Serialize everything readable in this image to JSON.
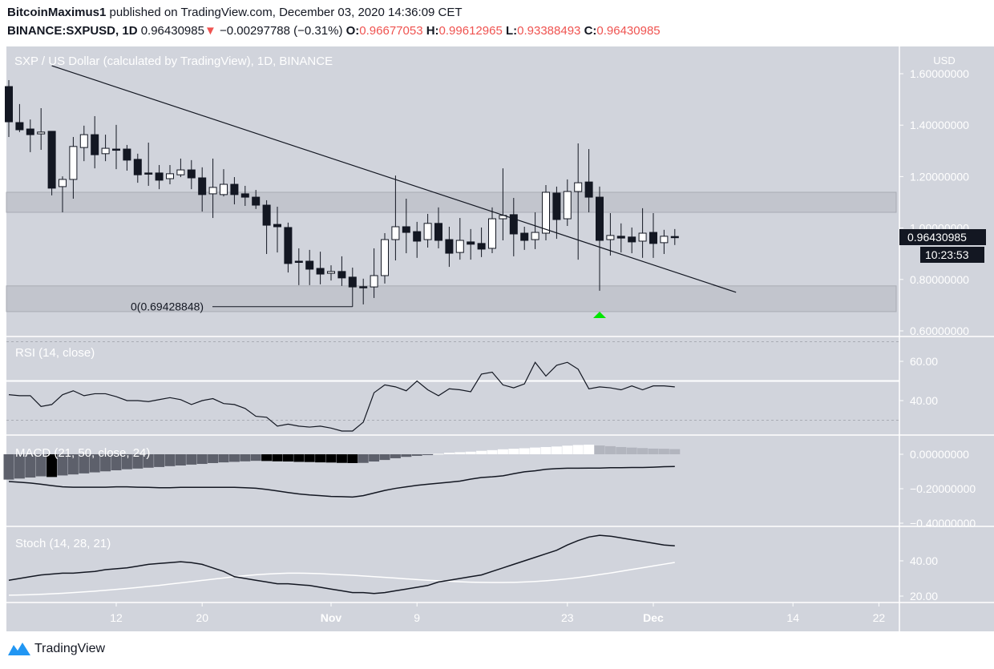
{
  "header": {
    "author": "BitcoinMaximus1",
    "published": "published on TradingView.com, December 03, 2020 14:36:09 CET",
    "symbol": "BINANCE:SXPUSD, 1D",
    "last": "0.96430985",
    "change": "−0.00297788 (−0.31%)",
    "o_label": "O:",
    "o": "0.96677053",
    "h_label": "H:",
    "h": "0.99612965",
    "l_label": "L:",
    "l": "0.93388493",
    "c_label": "C:",
    "c": "0.96430985"
  },
  "colors": {
    "bg": "#d1d4dc",
    "zone": "#c2c5cd",
    "down": "#131722",
    "up": "#ffffff",
    "accent_red": "#ef5350",
    "signal_green": "#00e600",
    "brand_blue": "#2196f3"
  },
  "footer": {
    "brand": "TradingView"
  },
  "chart_data": {
    "type": "candlestick",
    "title": "SXP / US Dollar (calculated by TradingView), 1D, BINANCE",
    "currency": "USD",
    "ylim": [
      0.6,
      1.6
    ],
    "y_ticks": [
      "1.60000000",
      "1.40000000",
      "1.20000000",
      "1.00000000",
      "0.80000000",
      "0.60000000"
    ],
    "y_tick_values": [
      1.6,
      1.4,
      1.2,
      1.0,
      0.8,
      0.6
    ],
    "x_ticks": [
      {
        "label": "12",
        "index": 10
      },
      {
        "label": "20",
        "index": 18
      },
      {
        "label": "Nov",
        "index": 30
      },
      {
        "label": "9",
        "index": 38
      },
      {
        "label": "23",
        "index": 52
      },
      {
        "label": "Dec",
        "index": 60
      },
      {
        "label": "14",
        "index": 73
      },
      {
        "label": "22",
        "index": 81
      }
    ],
    "last_price_label": "0.96430985",
    "countdown": "10:23:53",
    "ohlc": [
      [
        1.55,
        1.575,
        1.354,
        1.413
      ],
      [
        1.41,
        1.482,
        1.373,
        1.382
      ],
      [
        1.385,
        1.422,
        1.295,
        1.363
      ],
      [
        1.366,
        1.466,
        1.304,
        1.373
      ],
      [
        1.376,
        1.376,
        1.127,
        1.155
      ],
      [
        1.161,
        1.201,
        1.061,
        1.189
      ],
      [
        1.189,
        1.354,
        1.114,
        1.317
      ],
      [
        1.313,
        1.398,
        1.26,
        1.363
      ],
      [
        1.363,
        1.435,
        1.232,
        1.285
      ],
      [
        1.289,
        1.363,
        1.26,
        1.31
      ],
      [
        1.307,
        1.401,
        1.229,
        1.304
      ],
      [
        1.307,
        1.323,
        1.223,
        1.264
      ],
      [
        1.267,
        1.289,
        1.176,
        1.207
      ],
      [
        1.214,
        1.332,
        1.164,
        1.211
      ],
      [
        1.214,
        1.245,
        1.151,
        1.186
      ],
      [
        1.192,
        1.245,
        1.17,
        1.211
      ],
      [
        1.207,
        1.27,
        1.198,
        1.226
      ],
      [
        1.226,
        1.264,
        1.151,
        1.195
      ],
      [
        1.195,
        1.236,
        1.064,
        1.13
      ],
      [
        1.133,
        1.27,
        1.039,
        1.158
      ],
      [
        1.13,
        1.229,
        1.123,
        1.17
      ],
      [
        1.17,
        1.198,
        1.092,
        1.13
      ],
      [
        1.133,
        1.164,
        1.086,
        1.12
      ],
      [
        1.12,
        1.148,
        1.074,
        1.089
      ],
      [
        1.089,
        1.108,
        0.899,
        1.011
      ],
      [
        1.014,
        1.083,
        0.905,
        1.005
      ],
      [
        1.002,
        1.021,
        0.827,
        0.862
      ],
      [
        0.871,
        0.921,
        0.778,
        0.868
      ],
      [
        0.871,
        0.915,
        0.778,
        0.84
      ],
      [
        0.843,
        0.908,
        0.781,
        0.821
      ],
      [
        0.824,
        0.855,
        0.796,
        0.831
      ],
      [
        0.831,
        0.89,
        0.775,
        0.806
      ],
      [
        0.809,
        0.846,
        0.694,
        0.771
      ],
      [
        0.772,
        0.803,
        0.703,
        0.771
      ],
      [
        0.771,
        0.921,
        0.728,
        0.815
      ],
      [
        0.815,
        0.98,
        0.784,
        0.955
      ],
      [
        0.955,
        1.204,
        0.874,
        1.005
      ],
      [
        1.005,
        1.114,
        0.902,
        0.983
      ],
      [
        0.986,
        1.024,
        0.884,
        0.949
      ],
      [
        0.955,
        1.055,
        0.924,
        1.018
      ],
      [
        1.018,
        1.08,
        0.921,
        0.952
      ],
      [
        0.955,
        1.005,
        0.849,
        0.902
      ],
      [
        0.905,
        1.039,
        0.877,
        0.952
      ],
      [
        0.946,
        0.996,
        0.877,
        0.937
      ],
      [
        0.94,
        1.002,
        0.887,
        0.918
      ],
      [
        0.921,
        1.08,
        0.902,
        1.036
      ],
      [
        1.036,
        1.232,
        0.952,
        1.049
      ],
      [
        1.052,
        1.117,
        0.89,
        0.977
      ],
      [
        0.98,
        1.005,
        0.915,
        0.952
      ],
      [
        0.955,
        1.061,
        0.918,
        0.983
      ],
      [
        0.98,
        1.167,
        0.952,
        1.139
      ],
      [
        1.136,
        1.161,
        0.958,
        1.033
      ],
      [
        1.036,
        1.189,
        1.008,
        1.142
      ],
      [
        1.142,
        1.329,
        0.877,
        1.176
      ],
      [
        1.179,
        1.307,
        1.061,
        1.12
      ],
      [
        1.12,
        1.161,
        0.756,
        0.952
      ],
      [
        0.955,
        1.058,
        0.893,
        0.971
      ],
      [
        0.968,
        1.018,
        0.905,
        0.961
      ],
      [
        0.965,
        1.002,
        0.902,
        0.946
      ],
      [
        0.949,
        1.077,
        0.884,
        0.98
      ],
      [
        0.983,
        1.058,
        0.884,
        0.94
      ],
      [
        0.943,
        0.993,
        0.899,
        0.968
      ],
      [
        0.967,
        0.996,
        0.934,
        0.964
      ]
    ],
    "trendline": {
      "from": [
        4,
        1.631
      ],
      "to": [
        67.7,
        0.75
      ]
    },
    "zones": [
      {
        "top": 1.139,
        "bottom": 1.061
      },
      {
        "top": 0.775,
        "bottom": 0.675
      }
    ],
    "annotation": {
      "label": "0(0.69428848)",
      "price": 0.69428848,
      "index": 32
    },
    "signal_marker": {
      "index": 55,
      "type": "up-triangle"
    },
    "rsi": {
      "label": "RSI (14, close)",
      "ticks": [
        "60.00",
        "40.00"
      ],
      "tick_values": [
        60,
        40
      ],
      "levels": {
        "upper": 70,
        "middle": 50,
        "lower": 30
      },
      "values": [
        43,
        42.5,
        42.5,
        37,
        38,
        43,
        45,
        42.5,
        43.5,
        43.5,
        42,
        40,
        40,
        39.5,
        40.5,
        41.5,
        40.5,
        38,
        40,
        41,
        38.5,
        38,
        36,
        32,
        31.5,
        27,
        28,
        27,
        26.5,
        27,
        26,
        24.5,
        24.5,
        29,
        44,
        48,
        47,
        45,
        50,
        45.5,
        42.5,
        46,
        45.5,
        44.5,
        53.5,
        54.5,
        48,
        46.5,
        48.5,
        59.5,
        52.5,
        58,
        59.5,
        56,
        46,
        47,
        46.5,
        45.5,
        47.5,
        45.5,
        47.5,
        47.5,
        47
      ]
    },
    "macd": {
      "label": "MACD (21, 50, close, 24)",
      "ticks": [
        "0.00000000",
        "−0.20000000",
        "−0.40000000"
      ],
      "tick_values": [
        0,
        -0.2,
        -0.4
      ],
      "histogram": [
        -0.147,
        -0.141,
        -0.135,
        -0.128,
        -0.132,
        -0.123,
        -0.117,
        -0.111,
        -0.105,
        -0.099,
        -0.093,
        -0.087,
        -0.083,
        -0.078,
        -0.074,
        -0.069,
        -0.065,
        -0.06,
        -0.056,
        -0.051,
        -0.047,
        -0.044,
        -0.041,
        -0.038,
        -0.039,
        -0.041,
        -0.042,
        -0.044,
        -0.045,
        -0.047,
        -0.048,
        -0.05,
        -0.051,
        -0.05,
        -0.042,
        -0.033,
        -0.023,
        -0.015,
        -0.009,
        -0.003,
        0.003,
        0.009,
        0.012,
        0.015,
        0.02,
        0.024,
        0.029,
        0.032,
        0.035,
        0.039,
        0.042,
        0.045,
        0.05,
        0.054,
        0.056,
        0.051,
        0.047,
        0.042,
        0.039,
        0.036,
        0.033,
        0.032,
        0.03
      ],
      "line": [
        -0.158,
        -0.162,
        -0.167,
        -0.174,
        -0.182,
        -0.189,
        -0.191,
        -0.191,
        -0.191,
        -0.191,
        -0.189,
        -0.189,
        -0.191,
        -0.192,
        -0.194,
        -0.194,
        -0.192,
        -0.192,
        -0.192,
        -0.192,
        -0.192,
        -0.192,
        -0.194,
        -0.197,
        -0.204,
        -0.213,
        -0.222,
        -0.23,
        -0.236,
        -0.24,
        -0.245,
        -0.246,
        -0.248,
        -0.24,
        -0.225,
        -0.21,
        -0.198,
        -0.189,
        -0.18,
        -0.174,
        -0.168,
        -0.162,
        -0.156,
        -0.144,
        -0.135,
        -0.131,
        -0.125,
        -0.113,
        -0.102,
        -0.096,
        -0.087,
        -0.083,
        -0.081,
        -0.081,
        -0.08,
        -0.08,
        -0.078,
        -0.078,
        -0.077,
        -0.077,
        -0.075,
        -0.072,
        -0.071
      ]
    },
    "stoch": {
      "label": "Stoch (14, 28, 21)",
      "ticks": [
        "40.00",
        "20.00"
      ],
      "tick_values": [
        40,
        20
      ],
      "k": [
        29,
        30,
        31,
        32,
        32.5,
        33,
        33,
        33.5,
        34,
        35,
        35.5,
        36,
        37,
        38,
        38.5,
        39,
        39.5,
        39,
        38,
        36,
        34,
        31,
        30,
        29,
        28,
        27,
        27,
        26.5,
        26,
        25,
        24,
        23,
        22,
        22,
        21.5,
        22,
        23,
        24,
        25,
        26,
        28,
        29,
        30,
        31,
        32,
        34,
        36,
        38,
        40,
        42,
        44,
        46,
        49,
        51.5,
        53.5,
        54.5,
        54,
        53,
        52,
        51,
        50,
        49,
        48.5
      ],
      "d": [
        20.5,
        20.6,
        20.8,
        21,
        21.3,
        21.6,
        22,
        22.4,
        22.8,
        23.3,
        23.8,
        24.3,
        24.9,
        25.5,
        26.1,
        26.8,
        27.5,
        28.2,
        28.9,
        29.6,
        30.3,
        31,
        31.6,
        32.1,
        32.5,
        32.8,
        33,
        33,
        32.9,
        32.7,
        32.4,
        32.1,
        31.8,
        31.4,
        31,
        30.6,
        30.2,
        29.8,
        29.4,
        29,
        28.7,
        28.4,
        28.1,
        27.9,
        27.8,
        27.7,
        27.7,
        27.8,
        28,
        28.3,
        28.7,
        29.2,
        29.8,
        30.5,
        31.3,
        32.2,
        33.1,
        34.1,
        35.1,
        36.1,
        37.1,
        38.1,
        39.1
      ]
    }
  }
}
